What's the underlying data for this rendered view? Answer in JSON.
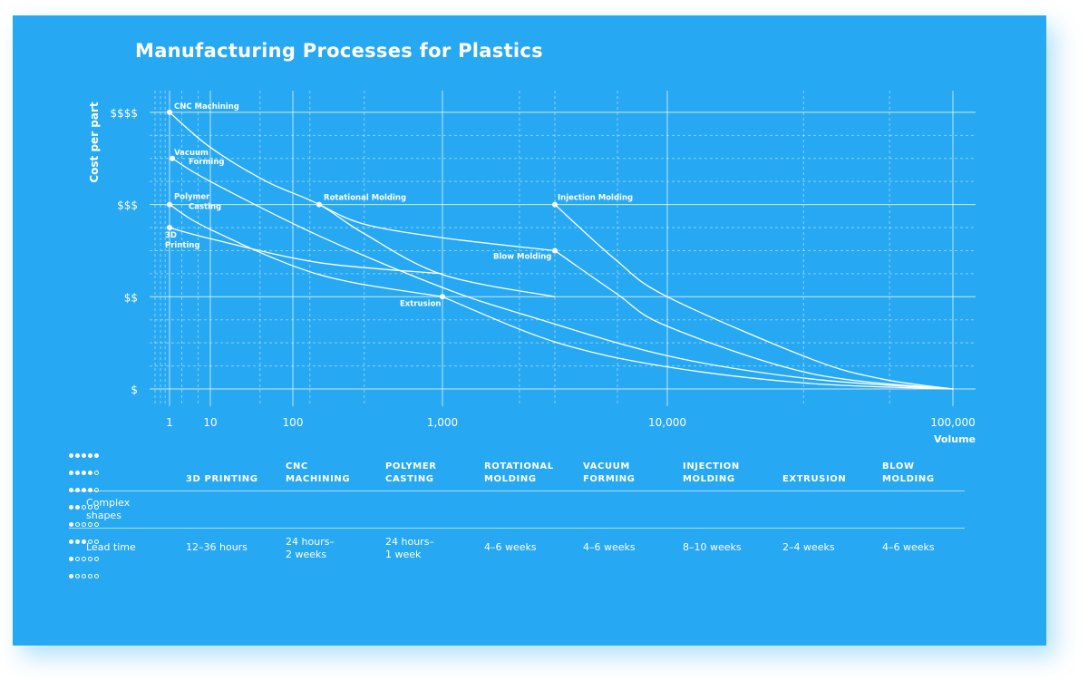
{
  "title": "Manufacturing Processes for Plastics",
  "colors": {
    "background": "#27a8f2",
    "foreground": "#ffffff"
  },
  "chart_data": {
    "type": "line",
    "title": "Manufacturing Processes for Plastics",
    "xlabel": "Volume",
    "ylabel": "Cost per part",
    "x_scale": "log",
    "x_ticks": [
      {
        "value": 1,
        "label": "1"
      },
      {
        "value": 10,
        "label": "10"
      },
      {
        "value": 100,
        "label": "100"
      },
      {
        "value": 1000,
        "label": "1,000"
      },
      {
        "value": 10000,
        "label": "10,000"
      },
      {
        "value": 100000,
        "label": "100,000"
      }
    ],
    "y_ticks": [
      {
        "value": 1,
        "label": "$"
      },
      {
        "value": 2,
        "label": "$$"
      },
      {
        "value": 3,
        "label": "$$$"
      },
      {
        "value": 4,
        "label": "$$$$"
      }
    ],
    "xlim": [
      1,
      100000
    ],
    "ylim": [
      1,
      4
    ],
    "grid": true,
    "series": [
      {
        "name": "CNC Machining",
        "label": [
          "CNC Machining"
        ],
        "points": [
          [
            1,
            4
          ],
          [
            10,
            3.62
          ],
          [
            48,
            3.25
          ],
          [
            150,
            3
          ],
          [
            296,
            2.69
          ],
          [
            1000,
            2.24
          ],
          [
            3162,
            2.0
          ]
        ]
      },
      {
        "name": "Vacuum Forming",
        "label": [
          "Vacuum",
          "Forming"
        ],
        "points": [
          [
            1.17,
            3.5
          ],
          [
            10,
            3.25
          ],
          [
            150,
            2.66
          ],
          [
            1000,
            2.1
          ],
          [
            2350,
            1.8
          ],
          [
            10000,
            1.36
          ],
          [
            31600,
            1.11
          ],
          [
            100000,
            1
          ]
        ]
      },
      {
        "name": "Polymer Casting",
        "label": [
          "Polymer",
          "Casting"
        ],
        "points": [
          [
            1,
            3
          ],
          [
            10,
            2.73
          ],
          [
            150,
            2.24
          ],
          [
            1000,
            2.0
          ]
        ]
      },
      {
        "name": "3D Printing",
        "label": [
          "3D",
          "Printing"
        ],
        "points": [
          [
            1,
            2.75
          ],
          [
            10,
            2.63
          ],
          [
            150,
            2.37
          ],
          [
            1000,
            2.25
          ]
        ]
      },
      {
        "name": "Rotational Molding",
        "label": [
          "Rotational Molding"
        ],
        "points": [
          [
            150,
            3
          ],
          [
            296,
            2.79
          ],
          [
            1000,
            2.64
          ],
          [
            3162,
            2.5
          ]
        ]
      },
      {
        "name": "Injection Molding",
        "label": [
          "Injection Molding"
        ],
        "points": [
          [
            3162,
            3
          ],
          [
            5900,
            2.4
          ],
          [
            10000,
            2.0
          ],
          [
            31600,
            1.33
          ],
          [
            56000,
            1.11
          ],
          [
            100000,
            1
          ]
        ]
      },
      {
        "name": "Blow Molding",
        "label": [
          "Blow Molding"
        ],
        "points": [
          [
            3162,
            2.5
          ],
          [
            5900,
            2.04
          ],
          [
            10000,
            1.68
          ],
          [
            31600,
            1.17
          ],
          [
            100000,
            1
          ]
        ]
      },
      {
        "name": "Extrusion",
        "label": [
          "Extrusion"
        ],
        "points": [
          [
            1000,
            2
          ],
          [
            3162,
            1.51
          ],
          [
            10000,
            1.24
          ],
          [
            31600,
            1.06
          ],
          [
            100000,
            1
          ]
        ]
      }
    ]
  },
  "table": {
    "columns": [
      {
        "line1": "",
        "line2": "3D PRINTING",
        "complexity": 5,
        "lead": [
          "12–36 hours"
        ]
      },
      {
        "line1": "CNC",
        "line2": "MACHINING",
        "complexity": 4,
        "lead": [
          "24 hours–",
          "2 weeks"
        ]
      },
      {
        "line1": "POLYMER",
        "line2": "CASTING",
        "complexity": 4,
        "lead": [
          "24 hours–",
          "1 week"
        ]
      },
      {
        "line1": "ROTATIONAL",
        "line2": "MOLDING",
        "complexity": 2,
        "lead": [
          "4–6 weeks"
        ]
      },
      {
        "line1": "VACUUM",
        "line2": "FORMING",
        "complexity": 1,
        "lead": [
          "4–6 weeks"
        ]
      },
      {
        "line1": "INJECTION",
        "line2": "MOLDING",
        "complexity": 3,
        "lead": [
          "8–10 weeks"
        ]
      },
      {
        "line1": "",
        "line2": "EXTRUSION",
        "complexity": 1,
        "lead": [
          "2–4 weeks"
        ]
      },
      {
        "line1": "BLOW",
        "line2": "MOLDING",
        "complexity": 1,
        "lead": [
          "4–6 weeks"
        ]
      }
    ],
    "complexity_max": 5,
    "row_labels": {
      "complex": [
        "Complex",
        "shapes"
      ],
      "lead": [
        "Lead time"
      ]
    }
  }
}
